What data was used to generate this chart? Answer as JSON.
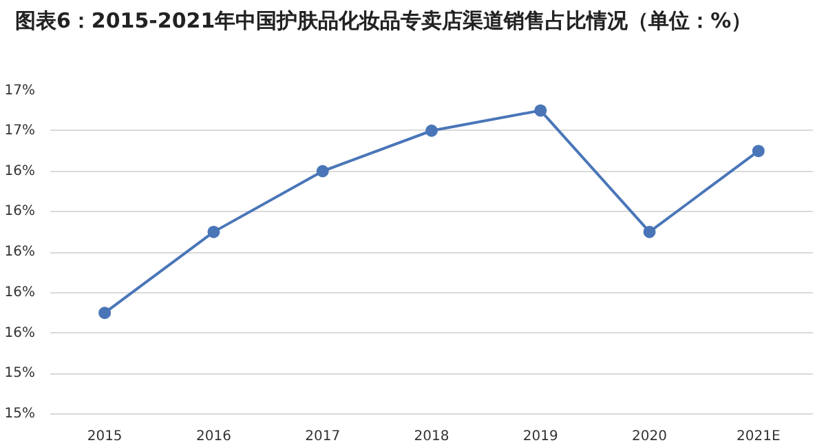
{
  "chart_data": {
    "type": "line",
    "title": "图表6：2015-2021年中国护肤品化妆品专卖店渠道销售占比情况（单位：%）",
    "categories": [
      "2015",
      "2016",
      "2017",
      "2018",
      "2019",
      "2020",
      "2021E"
    ],
    "series": [
      {
        "color": "#4a76b8",
        "values": [
          15.7,
          16.1,
          16.4,
          16.6,
          16.7,
          16.1,
          16.5
        ]
      }
    ],
    "ylim": [
      15.2,
      16.8
    ],
    "yticks": [
      {
        "value": 15.2,
        "label": "15%"
      },
      {
        "value": 15.4,
        "label": "15%"
      },
      {
        "value": 15.6,
        "label": "16%"
      },
      {
        "value": 15.8,
        "label": "16%"
      },
      {
        "value": 16.0,
        "label": "16%"
      },
      {
        "value": 16.2,
        "label": "16%"
      },
      {
        "value": 16.4,
        "label": "16%"
      },
      {
        "value": 16.6,
        "label": "17%"
      },
      {
        "value": 16.8,
        "label": "17%"
      }
    ],
    "grid": "y",
    "marker": "circle"
  }
}
